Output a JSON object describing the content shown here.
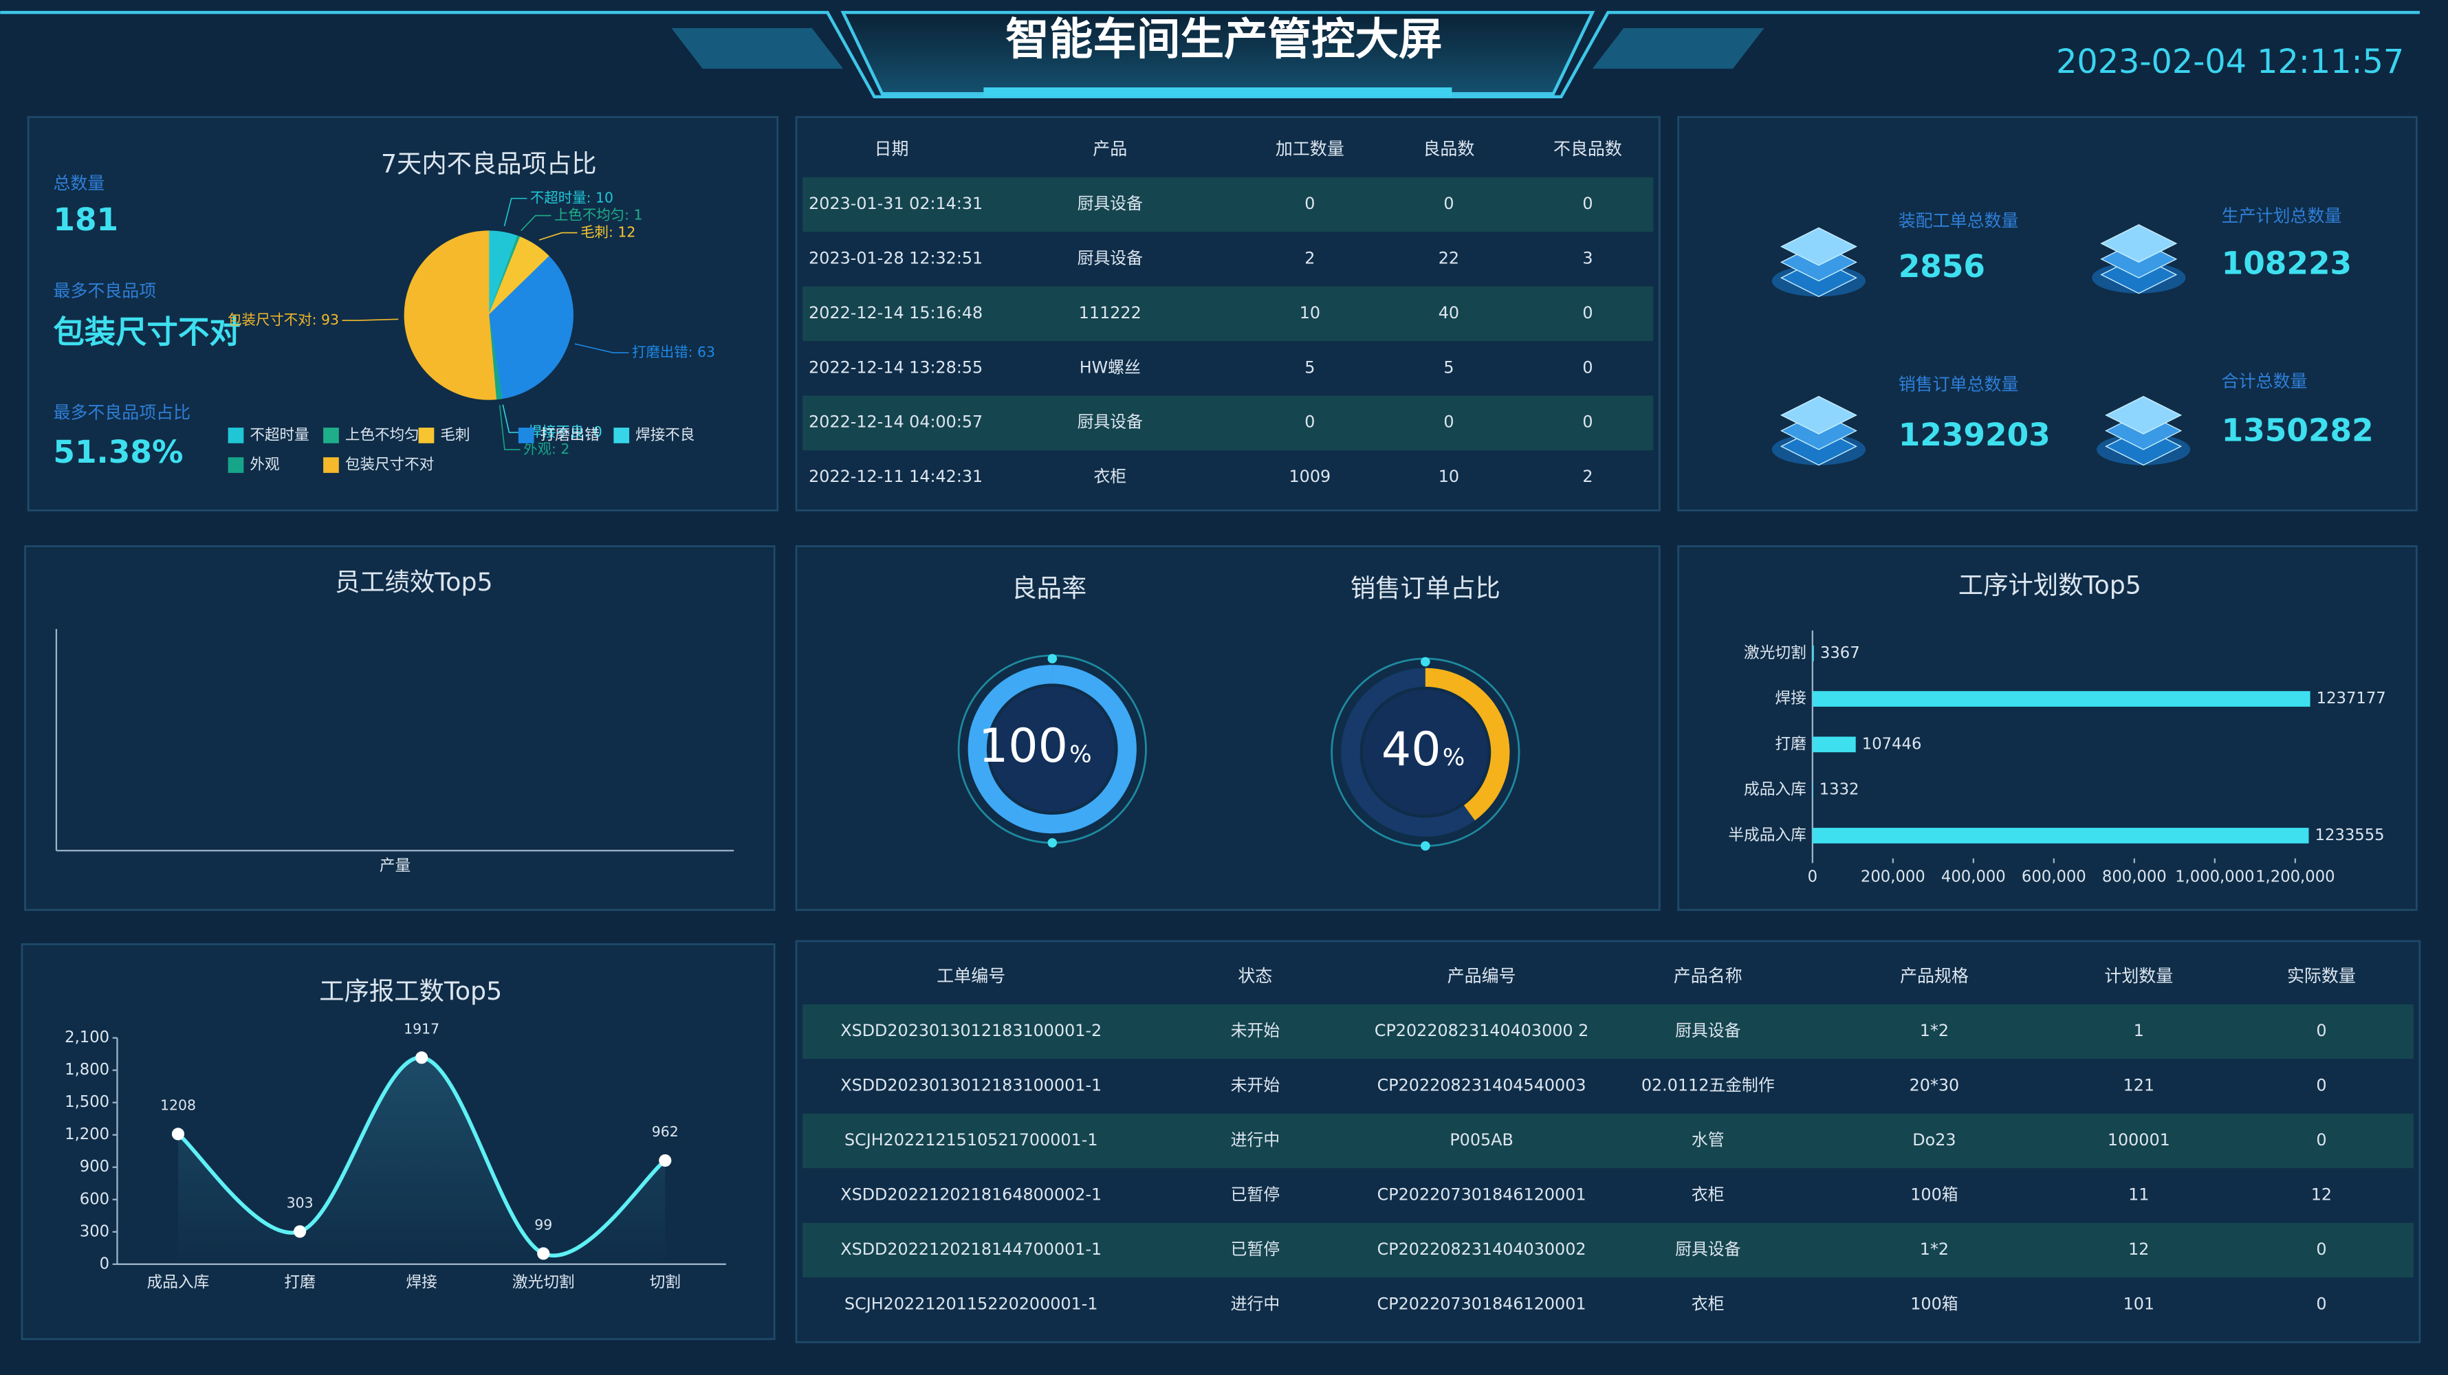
{
  "header": {
    "title": "智能车间生产管控大屏",
    "datetime": "2023-02-04 12:11:57"
  },
  "defect_summary": {
    "items": [
      {
        "label": "总数量",
        "value": "181"
      },
      {
        "label": "最多不良品项",
        "value": "包装尺寸不对"
      },
      {
        "label": "最多不良品项占比",
        "value": "51.38%"
      }
    ]
  },
  "production_table": {
    "columns": [
      "日期",
      "产品",
      "加工数量",
      "良品数",
      "不良品数"
    ],
    "rows": [
      [
        "2023-01-31 02:14:31",
        "厨具设备",
        "0",
        "0",
        "0"
      ],
      [
        "2023-01-28 12:32:51",
        "厨具设备",
        "2",
        "22",
        "3"
      ],
      [
        "2022-12-14 15:16:48",
        "111222",
        "10",
        "40",
        "0"
      ],
      [
        "2022-12-14 13:28:55",
        "HW螺丝",
        "5",
        "5",
        "0"
      ],
      [
        "2022-12-14 04:00:57",
        "厨具设备",
        "0",
        "0",
        "0"
      ],
      [
        "2022-12-11 14:42:31",
        "衣柜",
        "1009",
        "10",
        "2"
      ]
    ]
  },
  "totals": {
    "items": [
      {
        "label": "装配工单总数量",
        "value": "2856"
      },
      {
        "label": "生产计划总数量",
        "value": "108223"
      },
      {
        "label": "销售订单总数量",
        "value": "1239203"
      },
      {
        "label": "合计总数量",
        "value": "1350282"
      }
    ]
  },
  "order_table": {
    "columns": [
      "工单编号",
      "状态",
      "产品编号",
      "产品名称",
      "产品规格",
      "计划数量",
      "实际数量"
    ],
    "rows": [
      [
        "XSDD2023013012183100001-2",
        "未开始",
        "CP20220823140403000 2",
        "厨具设备",
        "1*2",
        "1",
        "0"
      ],
      [
        "XSDD2023013012183100001-1",
        "未开始",
        "CP202208231404540003",
        "02.0112五金制作",
        "20*30",
        "121",
        "0"
      ],
      [
        "SCJH2022121510521700001-1",
        "进行中",
        "P005AB",
        "水管",
        "Do23",
        "100001",
        "0"
      ],
      [
        "XSDD2022120218164800002-1",
        "已暂停",
        "CP202207301846120001",
        "衣柜",
        "100箱",
        "11",
        "12"
      ],
      [
        "XSDD2022120218144700001-1",
        "已暂停",
        "CP202208231404030002",
        "厨具设备",
        "1*2",
        "12",
        "0"
      ],
      [
        "SCJH2022120115220200001-1",
        "进行中",
        "CP202207301846120001",
        "衣柜",
        "100箱",
        "101",
        "0"
      ]
    ]
  },
  "chart_data": [
    {
      "type": "pie",
      "title": "7天内不良品项占比",
      "categories": [
        "不超时量",
        "上色不均匀",
        "毛刺",
        "打磨出错",
        "焊接不良",
        "外观",
        "包装尺寸不对"
      ],
      "values": [
        10,
        1,
        12,
        63,
        0,
        2,
        93
      ],
      "value_labels": [
        "不超时量: 10",
        "上色不均匀: 1",
        "毛刺: 12",
        "打磨出错: 63",
        "焊接不良: 0",
        "外观: 2",
        "包装尺寸不对: 93"
      ],
      "colors": [
        "#21c6d6",
        "#1fae8a",
        "#f7c531",
        "#1e88e5",
        "#36d6e8",
        "#17a589",
        "#f6b92b"
      ]
    },
    {
      "type": "bar",
      "title": "员工绩效Top5",
      "x_label": "产量",
      "categories": [],
      "values": [],
      "color": "#3ee0f0"
    },
    {
      "type": "gauge",
      "title": "良品率",
      "value": 100,
      "unit": "%",
      "ylim": [
        0,
        100
      ],
      "color": "#3fa9f5"
    },
    {
      "type": "gauge",
      "title": "销售订单占比",
      "value": 40,
      "unit": "%",
      "ylim": [
        0,
        100
      ],
      "color": "#f5b21a"
    },
    {
      "type": "hbar",
      "title": "工序计划数Top5",
      "categories": [
        "激光切割",
        "焊接",
        "打磨",
        "成品入库",
        "半成品入库"
      ],
      "values": [
        3367,
        1237177,
        107446,
        1332,
        1233555
      ],
      "color": "#3ee0f0",
      "xlim": [
        0,
        1300000
      ],
      "xticks": [
        0,
        {
          "value": 200000,
          "label": "200,000"
        },
        {
          "value": 400000,
          "label": "400,000"
        },
        {
          "value": 600000,
          "label": "600,000"
        },
        {
          "value": 800000,
          "label": "800,000"
        },
        {
          "value": 1000000,
          "label": "1,000,000"
        },
        {
          "value": 1200000,
          "label": "1,200,000"
        }
      ]
    },
    {
      "type": "line",
      "title": "工序报工数Top5",
      "categories": [
        "成品入库",
        "打磨",
        "焊接",
        "激光切割",
        "切割"
      ],
      "values": [
        1208,
        303,
        1917,
        99,
        962
      ],
      "color": "#5ef0f5",
      "ylim": [
        0,
        2100
      ],
      "yticks": [
        0,
        300,
        600,
        900,
        {
          "value": 1200,
          "label": "1,200"
        },
        {
          "value": 1500,
          "label": "1,500"
        },
        {
          "value": 1800,
          "label": "1,800"
        },
        {
          "value": 2100,
          "label": "2,100"
        }
      ]
    }
  ]
}
